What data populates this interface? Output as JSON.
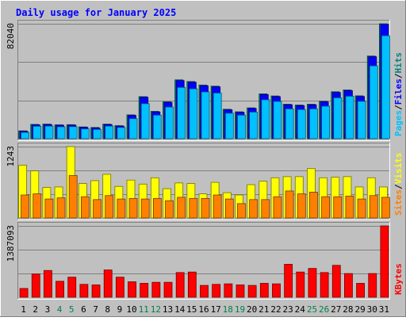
{
  "chart_data": {
    "type": "bar",
    "title": "Daily usage for January 2025",
    "categories": [
      "1",
      "2",
      "3",
      "4",
      "5",
      "6",
      "7",
      "8",
      "9",
      "10",
      "11",
      "12",
      "13",
      "14",
      "15",
      "16",
      "17",
      "18",
      "19",
      "20",
      "21",
      "22",
      "23",
      "24",
      "25",
      "26",
      "27",
      "28",
      "29",
      "30",
      "31"
    ],
    "weekend_days": [
      "4",
      "5",
      "11",
      "12",
      "18",
      "19",
      "25",
      "26"
    ],
    "grid": true,
    "legend": "right",
    "panels": [
      {
        "id": "top",
        "max_label": "82040",
        "ylim": [
          0,
          82040
        ],
        "legend_labels": [
          "Pages",
          "/",
          "Files",
          "/",
          "Hits"
        ],
        "series": [
          {
            "name": "Hits",
            "color": "#008080",
            "values": [
              5600,
              10200,
              10400,
              9900,
              10000,
              8400,
              8000,
              10400,
              9300,
              17000,
              30000,
              19500,
              26300,
              42000,
              40800,
              38300,
              37500,
              21000,
              19200,
              22000,
              32000,
              30500,
              24600,
              24000,
              24600,
              26700,
              33500,
              34800,
              30600,
              59000,
              82040
            ]
          },
          {
            "name": "Files",
            "color": "#0000ff",
            "values": [
              5300,
              9900,
              10100,
              9600,
              9700,
              8100,
              7700,
              10100,
              9000,
              16600,
              29600,
              19100,
              25900,
              41500,
              40300,
              37800,
              37000,
              20600,
              18800,
              21600,
              31500,
              30000,
              24200,
              23600,
              24200,
              26300,
              33000,
              34300,
              30100,
              58500,
              81500
            ]
          },
          {
            "name": "Pages",
            "color": "#00c0ff",
            "values": [
              4500,
              8900,
              9000,
              8500,
              8600,
              7000,
              6600,
              9000,
              8000,
              14300,
              25000,
              16800,
              22600,
              36600,
              35600,
              33400,
              32600,
              18200,
              16800,
              19000,
              27800,
              26600,
              21300,
              20800,
              21300,
              23200,
              29200,
              30300,
              26700,
              52000,
              73500
            ]
          }
        ]
      },
      {
        "id": "middle",
        "max_label": "1243",
        "ylim": [
          0,
          1243
        ],
        "legend_labels": [
          "Sites",
          "/",
          "Visits"
        ],
        "series": [
          {
            "name": "Visits",
            "color": "#ffff00",
            "values": [
              920,
              820,
              530,
              540,
              1243,
              600,
              650,
              760,
              550,
              660,
              590,
              700,
              510,
              610,
              600,
              420,
              620,
              440,
              400,
              580,
              640,
              700,
              720,
              720,
              860,
              700,
              710,
              720,
              540,
              700,
              540
            ]
          },
          {
            "name": "Sites",
            "color": "#ff8000",
            "values": [
              400,
              420,
              330,
              350,
              740,
              370,
              320,
              390,
              330,
              340,
              330,
              340,
              300,
              360,
              340,
              340,
              400,
              330,
              250,
              320,
              320,
              370,
              470,
              420,
              450,
              370,
              370,
              380,
              330,
              390,
              360
            ]
          }
        ]
      },
      {
        "id": "bottom",
        "max_label": "1387093",
        "ylim": [
          0,
          1387093
        ],
        "legend_labels": [
          "KBytes"
        ],
        "series": [
          {
            "name": "KBytes",
            "color": "#ff0000",
            "values": [
              170000,
              450000,
              520000,
              310000,
              390000,
              250000,
              240000,
              530000,
              390000,
              300000,
              270000,
              290000,
              290000,
              480000,
              490000,
              230000,
              250000,
              260000,
              240000,
              230000,
              270000,
              260000,
              640000,
              490000,
              560000,
              480000,
              620000,
              460000,
              270000,
              460000,
              1387093
            ]
          }
        ]
      }
    ]
  }
}
